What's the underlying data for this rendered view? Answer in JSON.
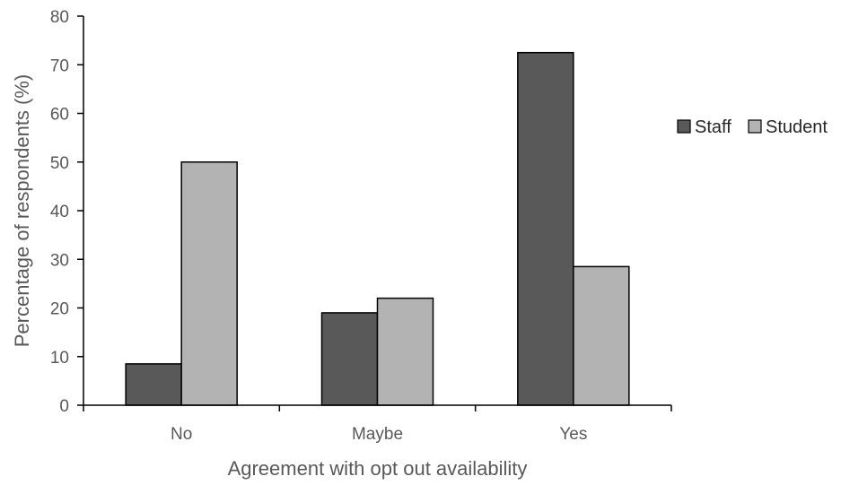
{
  "chart_data": {
    "type": "bar",
    "title": "",
    "xlabel": "Agreement with opt out availability",
    "ylabel": "Percentage of respondents (%)",
    "categories": [
      "No",
      "Maybe",
      "Yes"
    ],
    "series": [
      {
        "name": "Staff",
        "values": [
          8.5,
          19,
          72.5
        ],
        "color": "#595959"
      },
      {
        "name": "Student",
        "values": [
          50,
          22,
          28.5
        ],
        "color": "#b3b3b3"
      }
    ],
    "ylim": [
      0,
      80
    ],
    "yticks": [
      "0",
      "10",
      "20",
      "30",
      "40",
      "50",
      "60",
      "70",
      "80"
    ],
    "grid": false,
    "legend_position": "right"
  }
}
